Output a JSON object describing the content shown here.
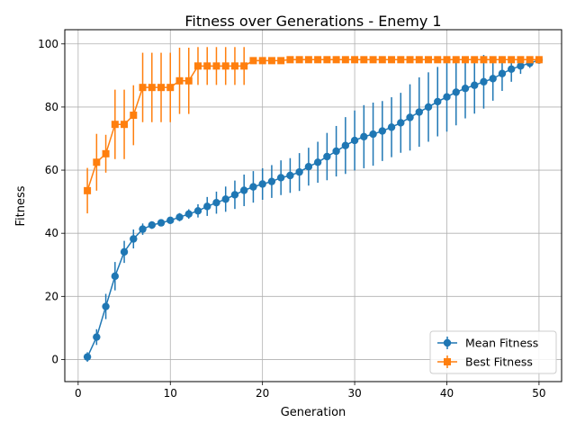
{
  "chart_data": {
    "type": "line",
    "title": "Fitness over Generations - Enemy 1",
    "xlabel": "Generation",
    "ylabel": "Fitness",
    "xlim": [
      -1.45,
      52.45
    ],
    "ylim": [
      -7,
      104.5
    ],
    "xticks": [
      0,
      10,
      20,
      30,
      40,
      50
    ],
    "yticks": [
      0,
      20,
      40,
      60,
      80,
      100
    ],
    "grid": true,
    "legend_position": "lower-right",
    "x": [
      1,
      2,
      3,
      4,
      5,
      6,
      7,
      8,
      9,
      10,
      11,
      12,
      13,
      14,
      15,
      16,
      17,
      18,
      19,
      20,
      21,
      22,
      23,
      24,
      25,
      26,
      27,
      28,
      29,
      30,
      31,
      32,
      33,
      34,
      35,
      36,
      37,
      38,
      39,
      40,
      41,
      42,
      43,
      44,
      45,
      46,
      47,
      48,
      49,
      50
    ],
    "series": [
      {
        "name": "Mean Fitness",
        "color": "#1f77b4",
        "marker": "circle",
        "values": [
          0.8,
          7.1,
          16.8,
          26.4,
          34.1,
          38.2,
          41.3,
          42.6,
          43.3,
          44.1,
          45.1,
          46.1,
          47.1,
          48.5,
          49.7,
          50.8,
          52.2,
          53.6,
          54.7,
          55.6,
          56.4,
          57.6,
          58.3,
          59.4,
          61.1,
          62.5,
          64.3,
          66.0,
          67.8,
          69.4,
          70.6,
          71.4,
          72.4,
          73.6,
          75.0,
          76.7,
          78.4,
          80.0,
          81.7,
          83.2,
          84.7,
          85.9,
          86.9,
          88.0,
          89.0,
          90.6,
          92.0,
          93.0,
          93.9,
          94.9
        ],
        "err": [
          1.5,
          2.5,
          4.0,
          4.5,
          3.5,
          3.0,
          1.8,
          1.2,
          1.0,
          1.0,
          1.3,
          1.5,
          2.1,
          3.0,
          3.5,
          4.0,
          4.5,
          5.0,
          5.0,
          5.0,
          5.2,
          5.5,
          5.5,
          6.0,
          6.0,
          6.5,
          7.5,
          8.0,
          9.0,
          9.5,
          10.0,
          10.0,
          9.5,
          9.5,
          9.5,
          10.5,
          11.0,
          11.0,
          11.0,
          11.0,
          10.5,
          9.5,
          9.0,
          8.5,
          7.0,
          5.5,
          4.0,
          2.5,
          1.5,
          1.0
        ]
      },
      {
        "name": "Best Fitness",
        "color": "#ff7f0e",
        "marker": "square",
        "values": [
          53.5,
          62.5,
          65.2,
          74.5,
          74.5,
          77.4,
          86.2,
          86.2,
          86.2,
          86.2,
          88.3,
          88.3,
          93.0,
          93.0,
          93.0,
          93.0,
          93.0,
          93.0,
          94.7,
          94.7,
          94.7,
          94.7,
          95.0,
          95.0,
          95.0,
          95.0,
          95.0,
          95.0,
          95.0,
          95.0,
          95.0,
          95.0,
          95.0,
          95.0,
          95.0,
          95.0,
          95.0,
          95.0,
          95.0,
          95.0,
          95.0,
          95.0,
          95.0,
          95.0,
          95.0,
          95.0,
          95.0,
          95.0,
          95.0,
          95.0
        ],
        "err": [
          7.2,
          9.0,
          6.0,
          11.0,
          11.0,
          9.5,
          11.0,
          11.0,
          11.0,
          11.0,
          10.5,
          10.5,
          6.0,
          6.0,
          6.0,
          6.0,
          6.0,
          6.0,
          0.7,
          0.7,
          0.7,
          0.7,
          0.5,
          0.5,
          0.5,
          0.5,
          0.5,
          0.5,
          0.5,
          0.5,
          0.5,
          0.5,
          0.5,
          0.5,
          0.5,
          0.5,
          0.5,
          0.5,
          0.5,
          0.5,
          0.5,
          0.5,
          0.5,
          0.5,
          0.5,
          0.5,
          0.5,
          0.5,
          0.5,
          0.5
        ]
      }
    ]
  }
}
